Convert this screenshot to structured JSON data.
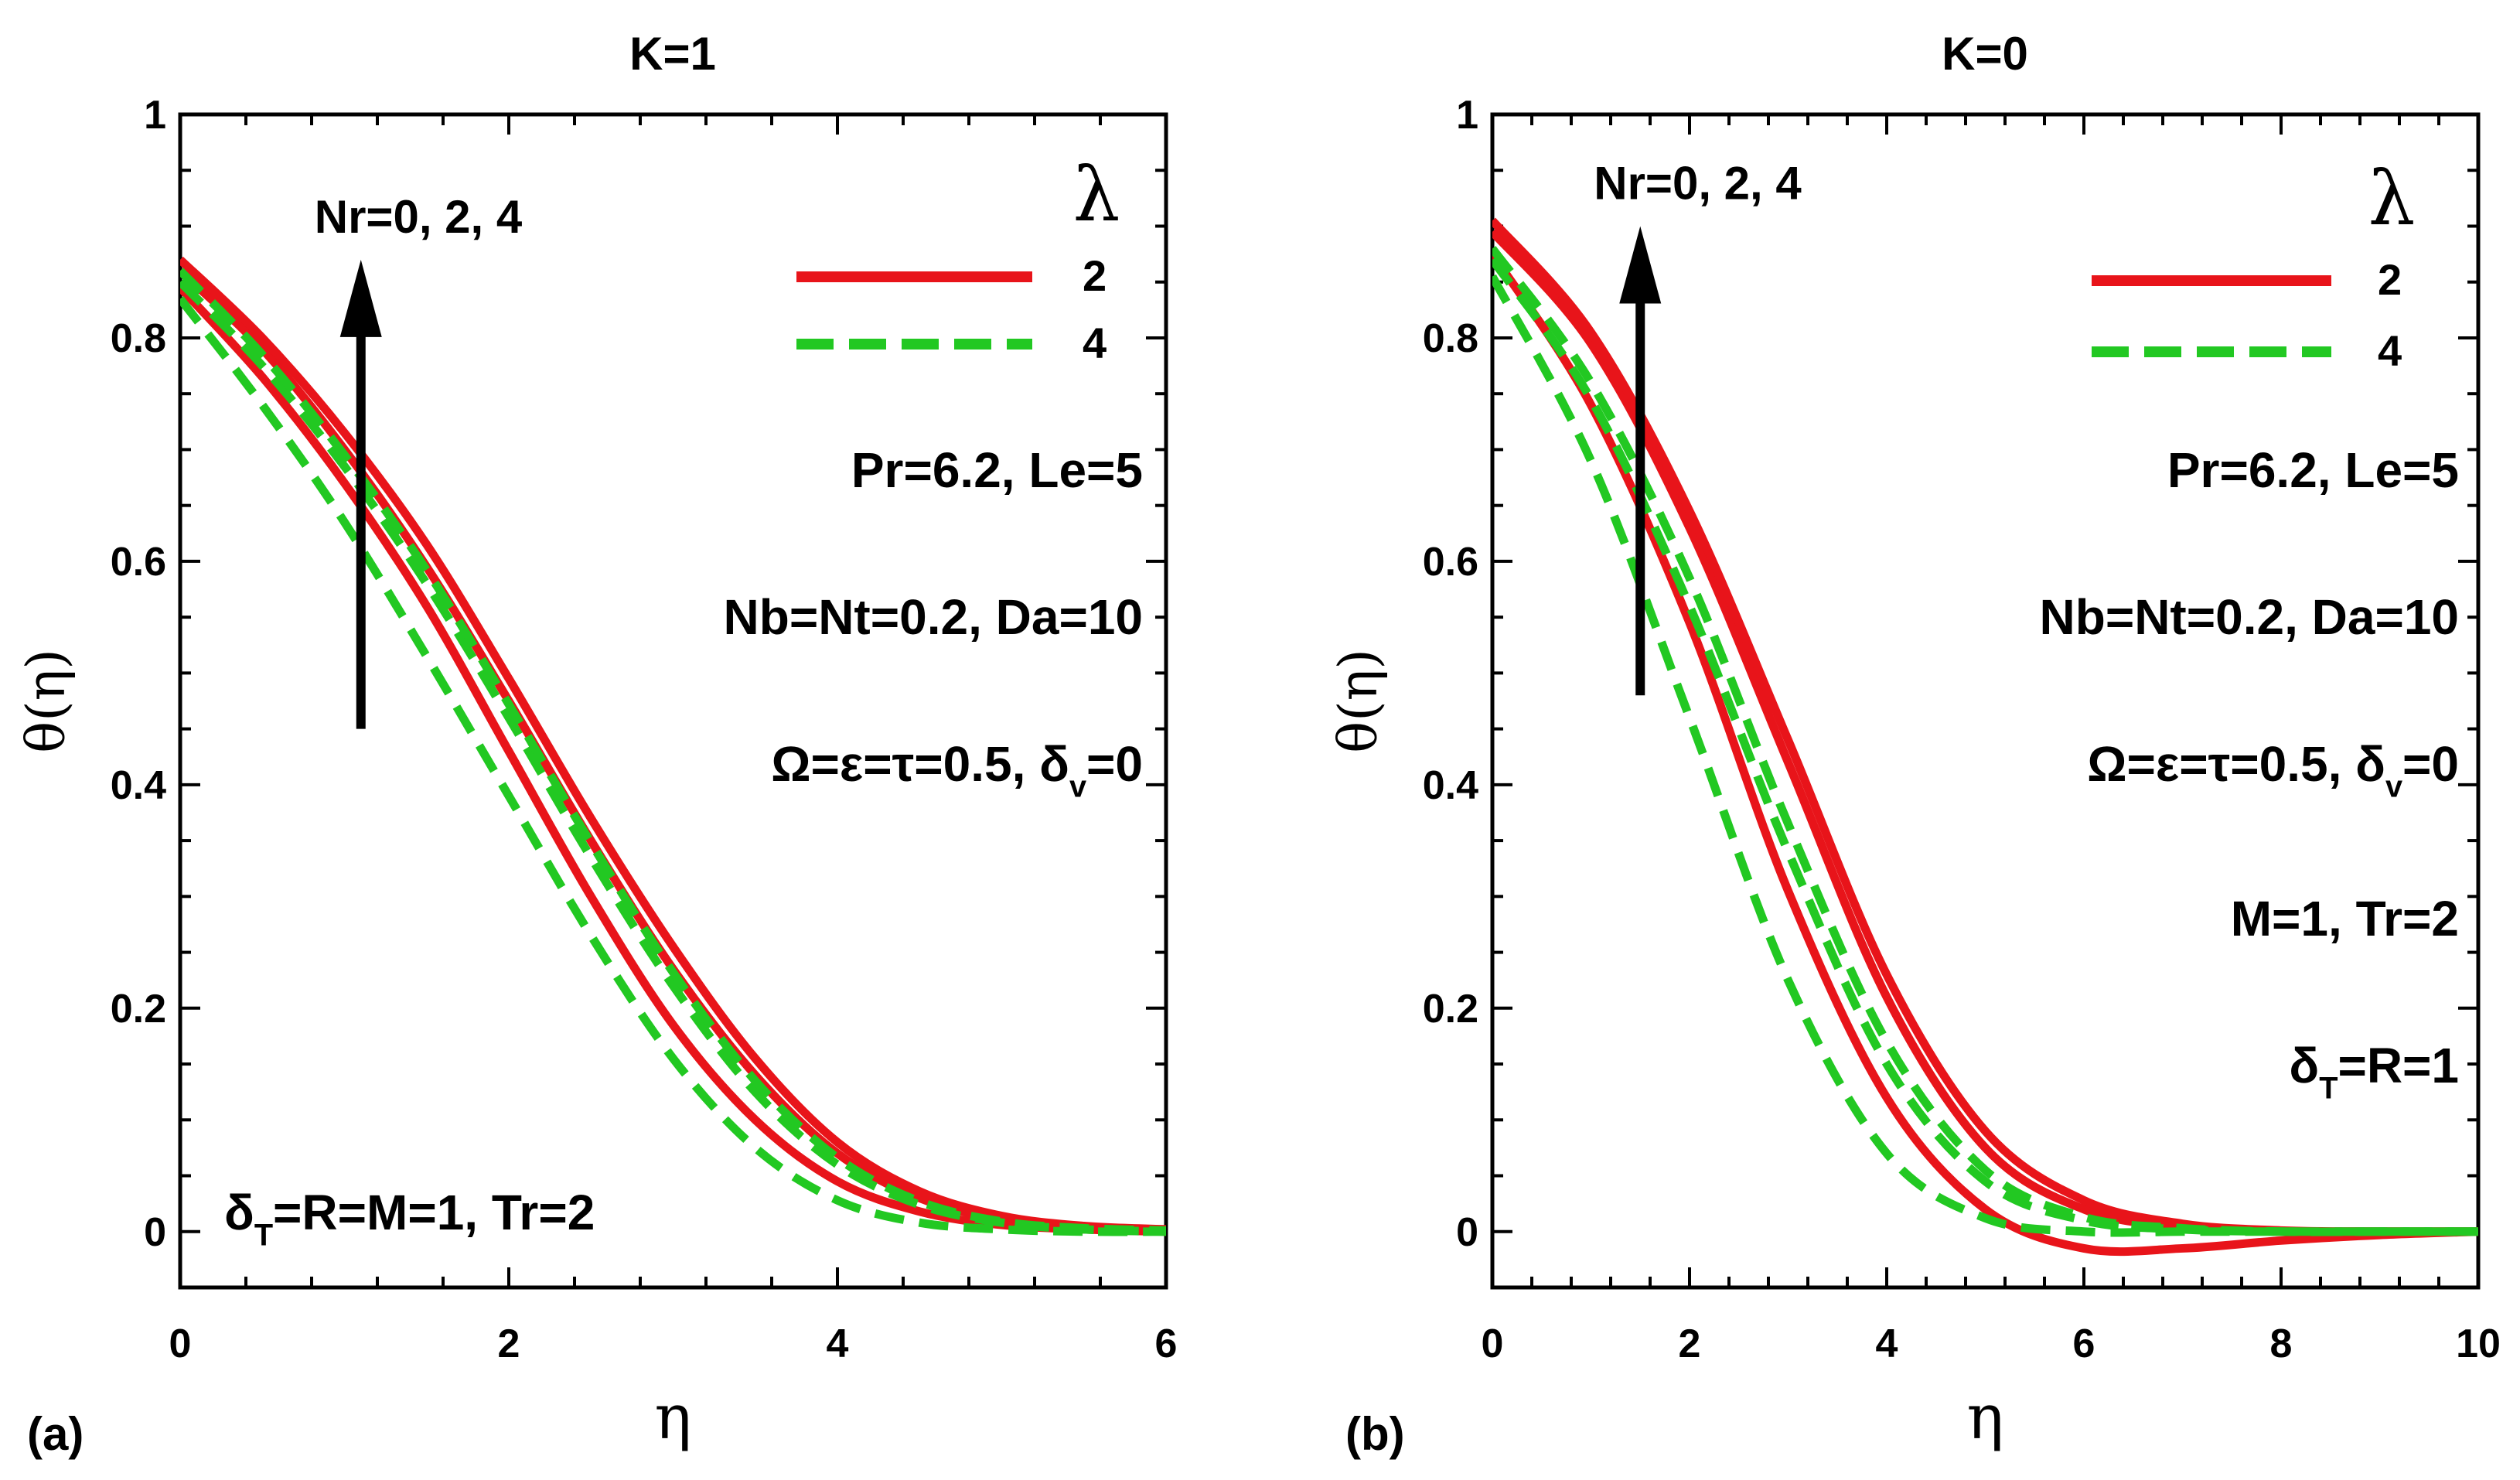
{
  "chart_data": [
    {
      "type": "line",
      "panel_label": "(a)",
      "title": "K=1",
      "xlabel": "η",
      "ylabel": "θ(η)",
      "xlim": [
        0,
        6
      ],
      "ylim": [
        -0.05,
        1
      ],
      "xticks": [
        0,
        2,
        4,
        6
      ],
      "yticks": [
        0,
        0.2,
        0.4,
        0.6,
        0.8,
        1
      ],
      "tick_labels_x": [
        "0",
        "2",
        "4",
        "6"
      ],
      "tick_labels_y": [
        "0",
        "0.2",
        "0.4",
        "0.6",
        "0.8",
        "1"
      ],
      "legend": {
        "title": "λ",
        "position": "top-right",
        "entries": [
          "2",
          "4"
        ]
      },
      "arrow": {
        "label": "Nr=0, 2, 4",
        "x": 1.1,
        "y_from": 0.45,
        "y_to": 0.87
      },
      "annotations": [
        "Pr=6.2, Le=5",
        "Nb=Nt=0.2, Da=10",
        "Ω=ε=τ=0.5, δv=0",
        "δT=R=M=1, Tr=2"
      ],
      "x": [
        0,
        0.5,
        1,
        1.5,
        2,
        2.5,
        3,
        3.5,
        4,
        4.5,
        5,
        5.5,
        6
      ],
      "series": [
        {
          "name": "λ=2, Nr=0",
          "style": "solid",
          "color": "#e8141a",
          "values": [
            0.845,
            0.765,
            0.67,
            0.56,
            0.43,
            0.3,
            0.185,
            0.1,
            0.045,
            0.018,
            0.006,
            0.002,
            0.0
          ]
        },
        {
          "name": "λ=2, Nr=2",
          "style": "solid",
          "color": "#e8141a",
          "values": [
            0.86,
            0.79,
            0.7,
            0.595,
            0.475,
            0.35,
            0.235,
            0.14,
            0.07,
            0.03,
            0.011,
            0.004,
            0.001
          ]
        },
        {
          "name": "λ=2, Nr=4",
          "style": "solid",
          "color": "#e8141a",
          "values": [
            0.87,
            0.8,
            0.715,
            0.615,
            0.495,
            0.37,
            0.255,
            0.155,
            0.08,
            0.036,
            0.014,
            0.005,
            0.002
          ]
        },
        {
          "name": "λ=4, Nr=0",
          "style": "dashed",
          "color": "#22c822",
          "values": [
            0.835,
            0.74,
            0.635,
            0.515,
            0.39,
            0.265,
            0.155,
            0.075,
            0.028,
            0.008,
            0.002,
            0.0,
            0.0
          ]
        },
        {
          "name": "λ=4, Nr=2",
          "style": "dashed",
          "color": "#22c822",
          "values": [
            0.85,
            0.775,
            0.685,
            0.58,
            0.46,
            0.335,
            0.22,
            0.125,
            0.06,
            0.024,
            0.008,
            0.002,
            0.0
          ]
        },
        {
          "name": "λ=4, Nr=4",
          "style": "dashed",
          "color": "#22c822",
          "values": [
            0.86,
            0.785,
            0.695,
            0.592,
            0.472,
            0.348,
            0.232,
            0.135,
            0.066,
            0.027,
            0.009,
            0.003,
            0.001
          ]
        }
      ]
    },
    {
      "type": "line",
      "panel_label": "(b)",
      "title": "K=0",
      "xlabel": "η",
      "ylabel": "θ(η)",
      "xlim": [
        0,
        10
      ],
      "ylim": [
        -0.05,
        1
      ],
      "xticks": [
        0,
        2,
        4,
        6,
        8,
        10
      ],
      "yticks": [
        0,
        0.2,
        0.4,
        0.6,
        0.8,
        1
      ],
      "tick_labels_x": [
        "0",
        "2",
        "4",
        "6",
        "8",
        "10"
      ],
      "tick_labels_y": [
        "0",
        "0.2",
        "0.4",
        "0.6",
        "0.8",
        "1"
      ],
      "legend": {
        "title": "λ",
        "position": "top-right",
        "entries": [
          "2",
          "4"
        ]
      },
      "arrow": {
        "label": "Nr=0, 2, 4",
        "x": 1.5,
        "y_from": 0.48,
        "y_to": 0.9
      },
      "annotations": [
        "Pr=6.2, Le=5",
        "Nb=Nt=0.2, Da=10",
        "Ω=ε=τ=0.5, δv=0",
        "M=1, Tr=2",
        "δT=R=1"
      ],
      "x": [
        0,
        1,
        2,
        3,
        4,
        5,
        6,
        7,
        8,
        9,
        10
      ],
      "series": [
        {
          "name": "λ=2, Nr=0",
          "style": "solid",
          "color": "#e8141a",
          "values": [
            0.875,
            0.74,
            0.545,
            0.305,
            0.12,
            0.02,
            -0.015,
            -0.015,
            -0.008,
            -0.003,
            0.0
          ]
        },
        {
          "name": "λ=2, Nr=2",
          "style": "solid",
          "color": "#e8141a",
          "values": [
            0.895,
            0.795,
            0.63,
            0.42,
            0.21,
            0.075,
            0.02,
            0.004,
            0.0,
            0.0,
            0.0
          ]
        },
        {
          "name": "λ=2, Nr=4",
          "style": "solid",
          "color": "#e8141a",
          "values": [
            0.905,
            0.805,
            0.645,
            0.44,
            0.23,
            0.09,
            0.028,
            0.007,
            0.001,
            0.0,
            0.0
          ]
        },
        {
          "name": "λ=4, Nr=0",
          "style": "dashed",
          "color": "#22c822",
          "values": [
            0.855,
            0.69,
            0.46,
            0.225,
            0.07,
            0.012,
            0.0,
            0.0,
            0.0,
            0.0,
            0.0
          ]
        },
        {
          "name": "λ=4, Nr=2",
          "style": "dashed",
          "color": "#22c822",
          "values": [
            0.87,
            0.745,
            0.56,
            0.34,
            0.15,
            0.045,
            0.01,
            0.002,
            0.0,
            0.0,
            0.0
          ]
        },
        {
          "name": "λ=4, Nr=4",
          "style": "dashed",
          "color": "#22c822",
          "values": [
            0.88,
            0.76,
            0.585,
            0.365,
            0.17,
            0.055,
            0.013,
            0.003,
            0.0,
            0.0,
            0.0
          ]
        }
      ]
    }
  ]
}
